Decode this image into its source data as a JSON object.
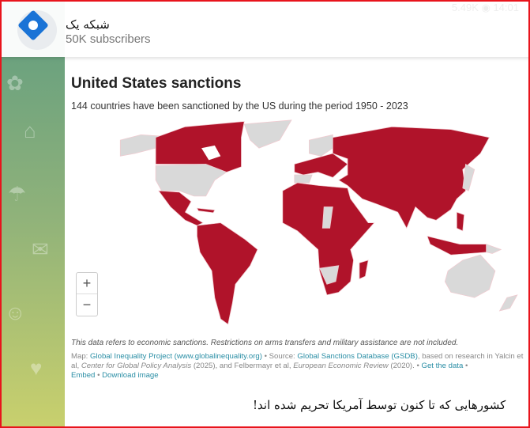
{
  "header": {
    "channel_name": "شبکه یک",
    "subscribers": "50K subscribers",
    "views": "5.49K",
    "time": "14:01"
  },
  "map": {
    "title": "United States sanctions",
    "subtitle": "144 countries have been sanctioned by the US during the period 1950 - 2023",
    "colors": {
      "sanctioned": "#b0132a",
      "not_sanctioned": "#d9d9d9"
    },
    "zoom_in": "+",
    "zoom_out": "−"
  },
  "note": "This data refers to economic sanctions. Restrictions on arms transfers and military assistance are not included.",
  "source": {
    "map_label": "Map:",
    "map_link": "Global Inequality Project (www.globalinequality.org)",
    "source_label": " • Source:",
    "source_link": "Global Sanctions Database (GSDB)",
    "text1": ", based on research in Yalcin et al, ",
    "journal1": "Center for Global Policy Analysis",
    "text2": " (2025), and Felbermayr et al, ",
    "journal2": "European Economic Review",
    "text3": " (2020). • ",
    "get_data": "Get the data",
    "sep": " • ",
    "embed": "Embed",
    "sep2": " • ",
    "download": "Download image"
  },
  "caption": "کشورهایی که تا کنون توسط آمریکا تحریم شده اند!"
}
